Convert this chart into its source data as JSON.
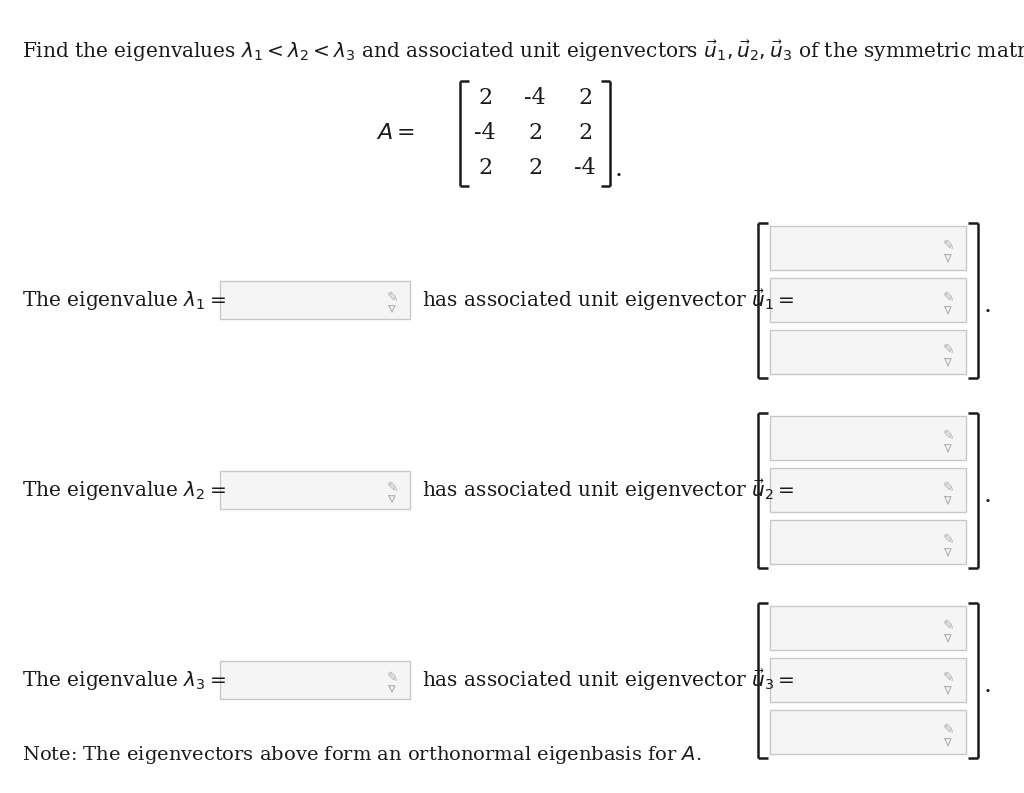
{
  "bg_color": "#ffffff",
  "title_text_plain": "Find the eigenvalues ",
  "title_math": "$\\lambda_1 < \\lambda_2 < \\lambda_3$",
  "title_text2": " and associated unit eigenvectors ",
  "title_math2": "$\\vec{u}_1, \\vec{u}_2, \\vec{u}_3$",
  "title_text3": " of the symmetric matrix",
  "matrix": [
    [
      2,
      -4,
      2
    ],
    [
      -4,
      2,
      2
    ],
    [
      2,
      2,
      -4
    ]
  ],
  "row_labels": [
    "The eigenvalue $\\lambda_1 =$",
    "The eigenvalue $\\lambda_2 =$",
    "The eigenvalue $\\lambda_3 =$"
  ],
  "vec_labels": [
    "has associated unit eigenvector $\\vec{u}_1 =$",
    "has associated unit eigenvector $\\vec{u}_2 =$",
    "has associated unit eigenvector $\\vec{u}_3 =$"
  ],
  "note_text": "Note: The eigenvectors above form an orthonormal eigenbasis for $A$.",
  "box_facecolor": "#f5f5f5",
  "box_edgecolor": "#c8c8c8",
  "bracket_color": "#1a1a1a",
  "text_color": "#1a1a1a",
  "pencil_color": "#b0b0b0",
  "font_size_title": 14.5,
  "font_size_body": 14.5,
  "font_size_matrix": 15,
  "font_size_note": 14
}
